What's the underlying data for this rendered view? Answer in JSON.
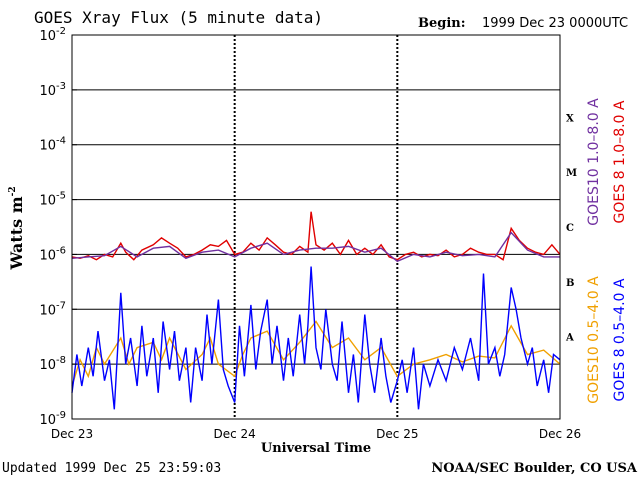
{
  "chart_data": {
    "type": "line",
    "title": "GOES Xray Flux (5 minute data)",
    "begin_label": "Begin:",
    "begin_value": "1999 Dec 23 0000UTC",
    "xlabel": "Universal Time",
    "ylabel": "Watts m",
    "ylabel_exp": "-2",
    "ylim": [
      1e-09,
      0.01
    ],
    "yscale": "log",
    "y_ticks": [
      {
        "base": "10",
        "exp": "-2",
        "value": 0.01
      },
      {
        "base": "10",
        "exp": "-3",
        "value": 0.001
      },
      {
        "base": "10",
        "exp": "-4",
        "value": 0.0001
      },
      {
        "base": "10",
        "exp": "-5",
        "value": 1e-05
      },
      {
        "base": "10",
        "exp": "-6",
        "value": 1e-06
      },
      {
        "base": "10",
        "exp": "-7",
        "value": 1e-07
      },
      {
        "base": "10",
        "exp": "-8",
        "value": 1e-08
      },
      {
        "base": "10",
        "exp": "-9",
        "value": 1e-09
      }
    ],
    "x_ticks": [
      "Dec 23",
      "Dec 24",
      "Dec 25",
      "Dec 26"
    ],
    "x_range_days": [
      0,
      3
    ],
    "flare_classes": [
      {
        "label": "X",
        "value": 0.0001
      },
      {
        "label": "M",
        "value": 1e-05
      },
      {
        "label": "C",
        "value": 1e-06
      },
      {
        "label": "B",
        "value": 1e-07
      },
      {
        "label": "A",
        "value": 1e-08
      }
    ],
    "legend_right": [
      {
        "name": "GOES10 1.0–8.0 A",
        "color": "#7030a0"
      },
      {
        "name": "GOES 8 1.0–8.0 A",
        "color": "#e00000"
      }
    ],
    "legend_right_low": [
      {
        "name": "GOES10 0.5–4.0 A",
        "color": "#f0a000"
      },
      {
        "name": "GOES 8 0.5–4.0 A",
        "color": "#0000ff"
      }
    ],
    "series": [
      {
        "name": "GOES 8 1.0–8.0 A",
        "color": "#e00000",
        "points": [
          [
            0,
            9e-07
          ],
          [
            0.05,
            8.5e-07
          ],
          [
            0.1,
            9.5e-07
          ],
          [
            0.15,
            8e-07
          ],
          [
            0.2,
            1e-06
          ],
          [
            0.25,
            9e-07
          ],
          [
            0.3,
            1.6e-06
          ],
          [
            0.33,
            1.1e-06
          ],
          [
            0.38,
            8e-07
          ],
          [
            0.43,
            1.2e-06
          ],
          [
            0.5,
            1.5e-06
          ],
          [
            0.55,
            2e-06
          ],
          [
            0.6,
            1.6e-06
          ],
          [
            0.65,
            1.3e-06
          ],
          [
            0.7,
            9e-07
          ],
          [
            0.75,
            1e-06
          ],
          [
            0.8,
            1.2e-06
          ],
          [
            0.85,
            1.5e-06
          ],
          [
            0.9,
            1.4e-06
          ],
          [
            0.95,
            1.8e-06
          ],
          [
            1.0,
            1e-06
          ],
          [
            1.05,
            1.1e-06
          ],
          [
            1.1,
            1.6e-06
          ],
          [
            1.15,
            1.2e-06
          ],
          [
            1.2,
            2e-06
          ],
          [
            1.25,
            1.5e-06
          ],
          [
            1.3,
            1.1e-06
          ],
          [
            1.35,
            1e-06
          ],
          [
            1.4,
            1.4e-06
          ],
          [
            1.45,
            1.1e-06
          ],
          [
            1.47,
            6e-06
          ],
          [
            1.5,
            1.5e-06
          ],
          [
            1.55,
            1.2e-06
          ],
          [
            1.6,
            1.6e-06
          ],
          [
            1.65,
            1e-06
          ],
          [
            1.7,
            1.8e-06
          ],
          [
            1.75,
            1e-06
          ],
          [
            1.8,
            1.3e-06
          ],
          [
            1.85,
            1e-06
          ],
          [
            1.9,
            1.5e-06
          ],
          [
            1.95,
            9e-07
          ],
          [
            2.0,
            8e-07
          ],
          [
            2.05,
            1e-06
          ],
          [
            2.1,
            1.1e-06
          ],
          [
            2.15,
            9e-07
          ],
          [
            2.2,
            1e-06
          ],
          [
            2.25,
            9.5e-07
          ],
          [
            2.3,
            1.2e-06
          ],
          [
            2.35,
            9e-07
          ],
          [
            2.4,
            1e-06
          ],
          [
            2.45,
            1.3e-06
          ],
          [
            2.5,
            1.1e-06
          ],
          [
            2.55,
            1e-06
          ],
          [
            2.6,
            1e-06
          ],
          [
            2.65,
            8e-07
          ],
          [
            2.7,
            3e-06
          ],
          [
            2.75,
            1.8e-06
          ],
          [
            2.8,
            1.3e-06
          ],
          [
            2.85,
            1.1e-06
          ],
          [
            2.9,
            1e-06
          ],
          [
            2.95,
            1.5e-06
          ],
          [
            3.0,
            1e-06
          ]
        ]
      },
      {
        "name": "GOES10 1.0–8.0 A",
        "color": "#7030a0",
        "points": [
          [
            0,
            8.5e-07
          ],
          [
            0.1,
            9e-07
          ],
          [
            0.2,
            9.5e-07
          ],
          [
            0.3,
            1.4e-06
          ],
          [
            0.4,
            9e-07
          ],
          [
            0.5,
            1.3e-06
          ],
          [
            0.6,
            1.4e-06
          ],
          [
            0.7,
            8.5e-07
          ],
          [
            0.8,
            1.1e-06
          ],
          [
            0.9,
            1.2e-06
          ],
          [
            1.0,
            9e-07
          ],
          [
            1.1,
            1.3e-06
          ],
          [
            1.2,
            1.6e-06
          ],
          [
            1.3,
            1e-06
          ],
          [
            1.4,
            1.2e-06
          ],
          [
            1.5,
            1.3e-06
          ],
          [
            1.6,
            1.3e-06
          ],
          [
            1.7,
            1.4e-06
          ],
          [
            1.8,
            1.1e-06
          ],
          [
            1.9,
            1.3e-06
          ],
          [
            2.0,
            7.5e-07
          ],
          [
            2.1,
            1e-06
          ],
          [
            2.2,
            9e-07
          ],
          [
            2.3,
            1.1e-06
          ],
          [
            2.4,
            9.5e-07
          ],
          [
            2.5,
            1e-06
          ],
          [
            2.6,
            9e-07
          ],
          [
            2.7,
            2.5e-06
          ],
          [
            2.8,
            1.2e-06
          ],
          [
            2.9,
            9e-07
          ],
          [
            3.0,
            9e-07
          ]
        ]
      },
      {
        "name": "GOES10 0.5–4.0 A",
        "color": "#f0a000",
        "points": [
          [
            0,
            4e-09
          ],
          [
            0.05,
            1.2e-08
          ],
          [
            0.1,
            6e-09
          ],
          [
            0.15,
            2e-08
          ],
          [
            0.2,
            1e-08
          ],
          [
            0.3,
            3e-08
          ],
          [
            0.35,
            1e-08
          ],
          [
            0.4,
            2e-08
          ],
          [
            0.5,
            2.5e-08
          ],
          [
            0.55,
            1.2e-08
          ],
          [
            0.6,
            3e-08
          ],
          [
            0.7,
            8e-09
          ],
          [
            0.8,
            1.5e-08
          ],
          [
            0.85,
            3e-08
          ],
          [
            0.9,
            1e-08
          ],
          [
            1.0,
            6e-09
          ],
          [
            1.05,
            1.5e-08
          ],
          [
            1.1,
            3e-08
          ],
          [
            1.2,
            4e-08
          ],
          [
            1.3,
            1.2e-08
          ],
          [
            1.4,
            2.5e-08
          ],
          [
            1.5,
            6e-08
          ],
          [
            1.6,
            2e-08
          ],
          [
            1.7,
            3e-08
          ],
          [
            1.8,
            1.2e-08
          ],
          [
            1.9,
            2e-08
          ],
          [
            2.0,
            6e-09
          ],
          [
            2.1,
            1e-08
          ],
          [
            2.2,
            1.2e-08
          ],
          [
            2.3,
            1.5e-08
          ],
          [
            2.4,
            1.1e-08
          ],
          [
            2.5,
            1.4e-08
          ],
          [
            2.6,
            1.3e-08
          ],
          [
            2.7,
            5e-08
          ],
          [
            2.8,
            1.5e-08
          ],
          [
            2.9,
            1.8e-08
          ],
          [
            3.0,
            1e-08
          ]
        ]
      },
      {
        "name": "GOES 8 0.5–4.0 A",
        "color": "#0000ff",
        "points": [
          [
            0,
            3e-09
          ],
          [
            0.03,
            1.5e-08
          ],
          [
            0.06,
            4e-09
          ],
          [
            0.1,
            2e-08
          ],
          [
            0.13,
            6e-09
          ],
          [
            0.16,
            4e-08
          ],
          [
            0.2,
            5e-09
          ],
          [
            0.23,
            1.2e-08
          ],
          [
            0.26,
            1.5e-09
          ],
          [
            0.3,
            2e-07
          ],
          [
            0.33,
            1e-08
          ],
          [
            0.36,
            3e-08
          ],
          [
            0.4,
            4e-09
          ],
          [
            0.43,
            5e-08
          ],
          [
            0.46,
            6e-09
          ],
          [
            0.5,
            3e-08
          ],
          [
            0.53,
            3e-09
          ],
          [
            0.56,
            6e-08
          ],
          [
            0.6,
            8e-09
          ],
          [
            0.63,
            4e-08
          ],
          [
            0.66,
            5e-09
          ],
          [
            0.7,
            2e-08
          ],
          [
            0.73,
            2e-09
          ],
          [
            0.76,
            2e-08
          ],
          [
            0.8,
            5e-09
          ],
          [
            0.83,
            8e-08
          ],
          [
            0.86,
            1e-08
          ],
          [
            0.9,
            1.5e-07
          ],
          [
            0.93,
            8e-09
          ],
          [
            0.96,
            4e-09
          ],
          [
            1.0,
            2e-09
          ],
          [
            1.03,
            5e-08
          ],
          [
            1.06,
            6e-09
          ],
          [
            1.1,
            1.2e-07
          ],
          [
            1.13,
            8e-09
          ],
          [
            1.16,
            4e-08
          ],
          [
            1.2,
            1.5e-07
          ],
          [
            1.23,
            1e-08
          ],
          [
            1.26,
            5e-08
          ],
          [
            1.3,
            5e-09
          ],
          [
            1.33,
            3e-08
          ],
          [
            1.36,
            6e-09
          ],
          [
            1.4,
            8e-08
          ],
          [
            1.43,
            1e-08
          ],
          [
            1.45,
            5e-08
          ],
          [
            1.47,
            6e-07
          ],
          [
            1.5,
            2e-08
          ],
          [
            1.53,
            8e-09
          ],
          [
            1.56,
            1e-07
          ],
          [
            1.6,
            1e-08
          ],
          [
            1.63,
            5e-09
          ],
          [
            1.66,
            6e-08
          ],
          [
            1.7,
            3e-09
          ],
          [
            1.73,
            1.5e-08
          ],
          [
            1.76,
            2e-09
          ],
          [
            1.8,
            8e-08
          ],
          [
            1.83,
            1e-08
          ],
          [
            1.86,
            3e-09
          ],
          [
            1.9,
            3e-08
          ],
          [
            1.93,
            6e-09
          ],
          [
            1.96,
            2e-09
          ],
          [
            2.0,
            5e-09
          ],
          [
            2.03,
            1.2e-08
          ],
          [
            2.06,
            3e-09
          ],
          [
            2.1,
            2e-08
          ],
          [
            2.13,
            1.5e-09
          ],
          [
            2.16,
            1e-08
          ],
          [
            2.2,
            4e-09
          ],
          [
            2.25,
            1.2e-08
          ],
          [
            2.3,
            5e-09
          ],
          [
            2.35,
            2e-08
          ],
          [
            2.4,
            8e-09
          ],
          [
            2.45,
            3e-08
          ],
          [
            2.5,
            5e-09
          ],
          [
            2.53,
            4.5e-07
          ],
          [
            2.56,
            1e-08
          ],
          [
            2.6,
            2e-08
          ],
          [
            2.63,
            6e-09
          ],
          [
            2.66,
            1.5e-08
          ],
          [
            2.7,
            2.5e-07
          ],
          [
            2.73,
            1e-07
          ],
          [
            2.76,
            3e-08
          ],
          [
            2.8,
            1e-08
          ],
          [
            2.83,
            2e-08
          ],
          [
            2.86,
            4e-09
          ],
          [
            2.9,
            1.2e-08
          ],
          [
            2.93,
            3e-09
          ],
          [
            2.96,
            1.5e-08
          ],
          [
            3.0,
            1.2e-08
          ]
        ]
      }
    ]
  },
  "footer": {
    "updated": "Updated 1999 Dec 25 23:59:03",
    "source": "NOAA/SEC Boulder, CO USA"
  }
}
